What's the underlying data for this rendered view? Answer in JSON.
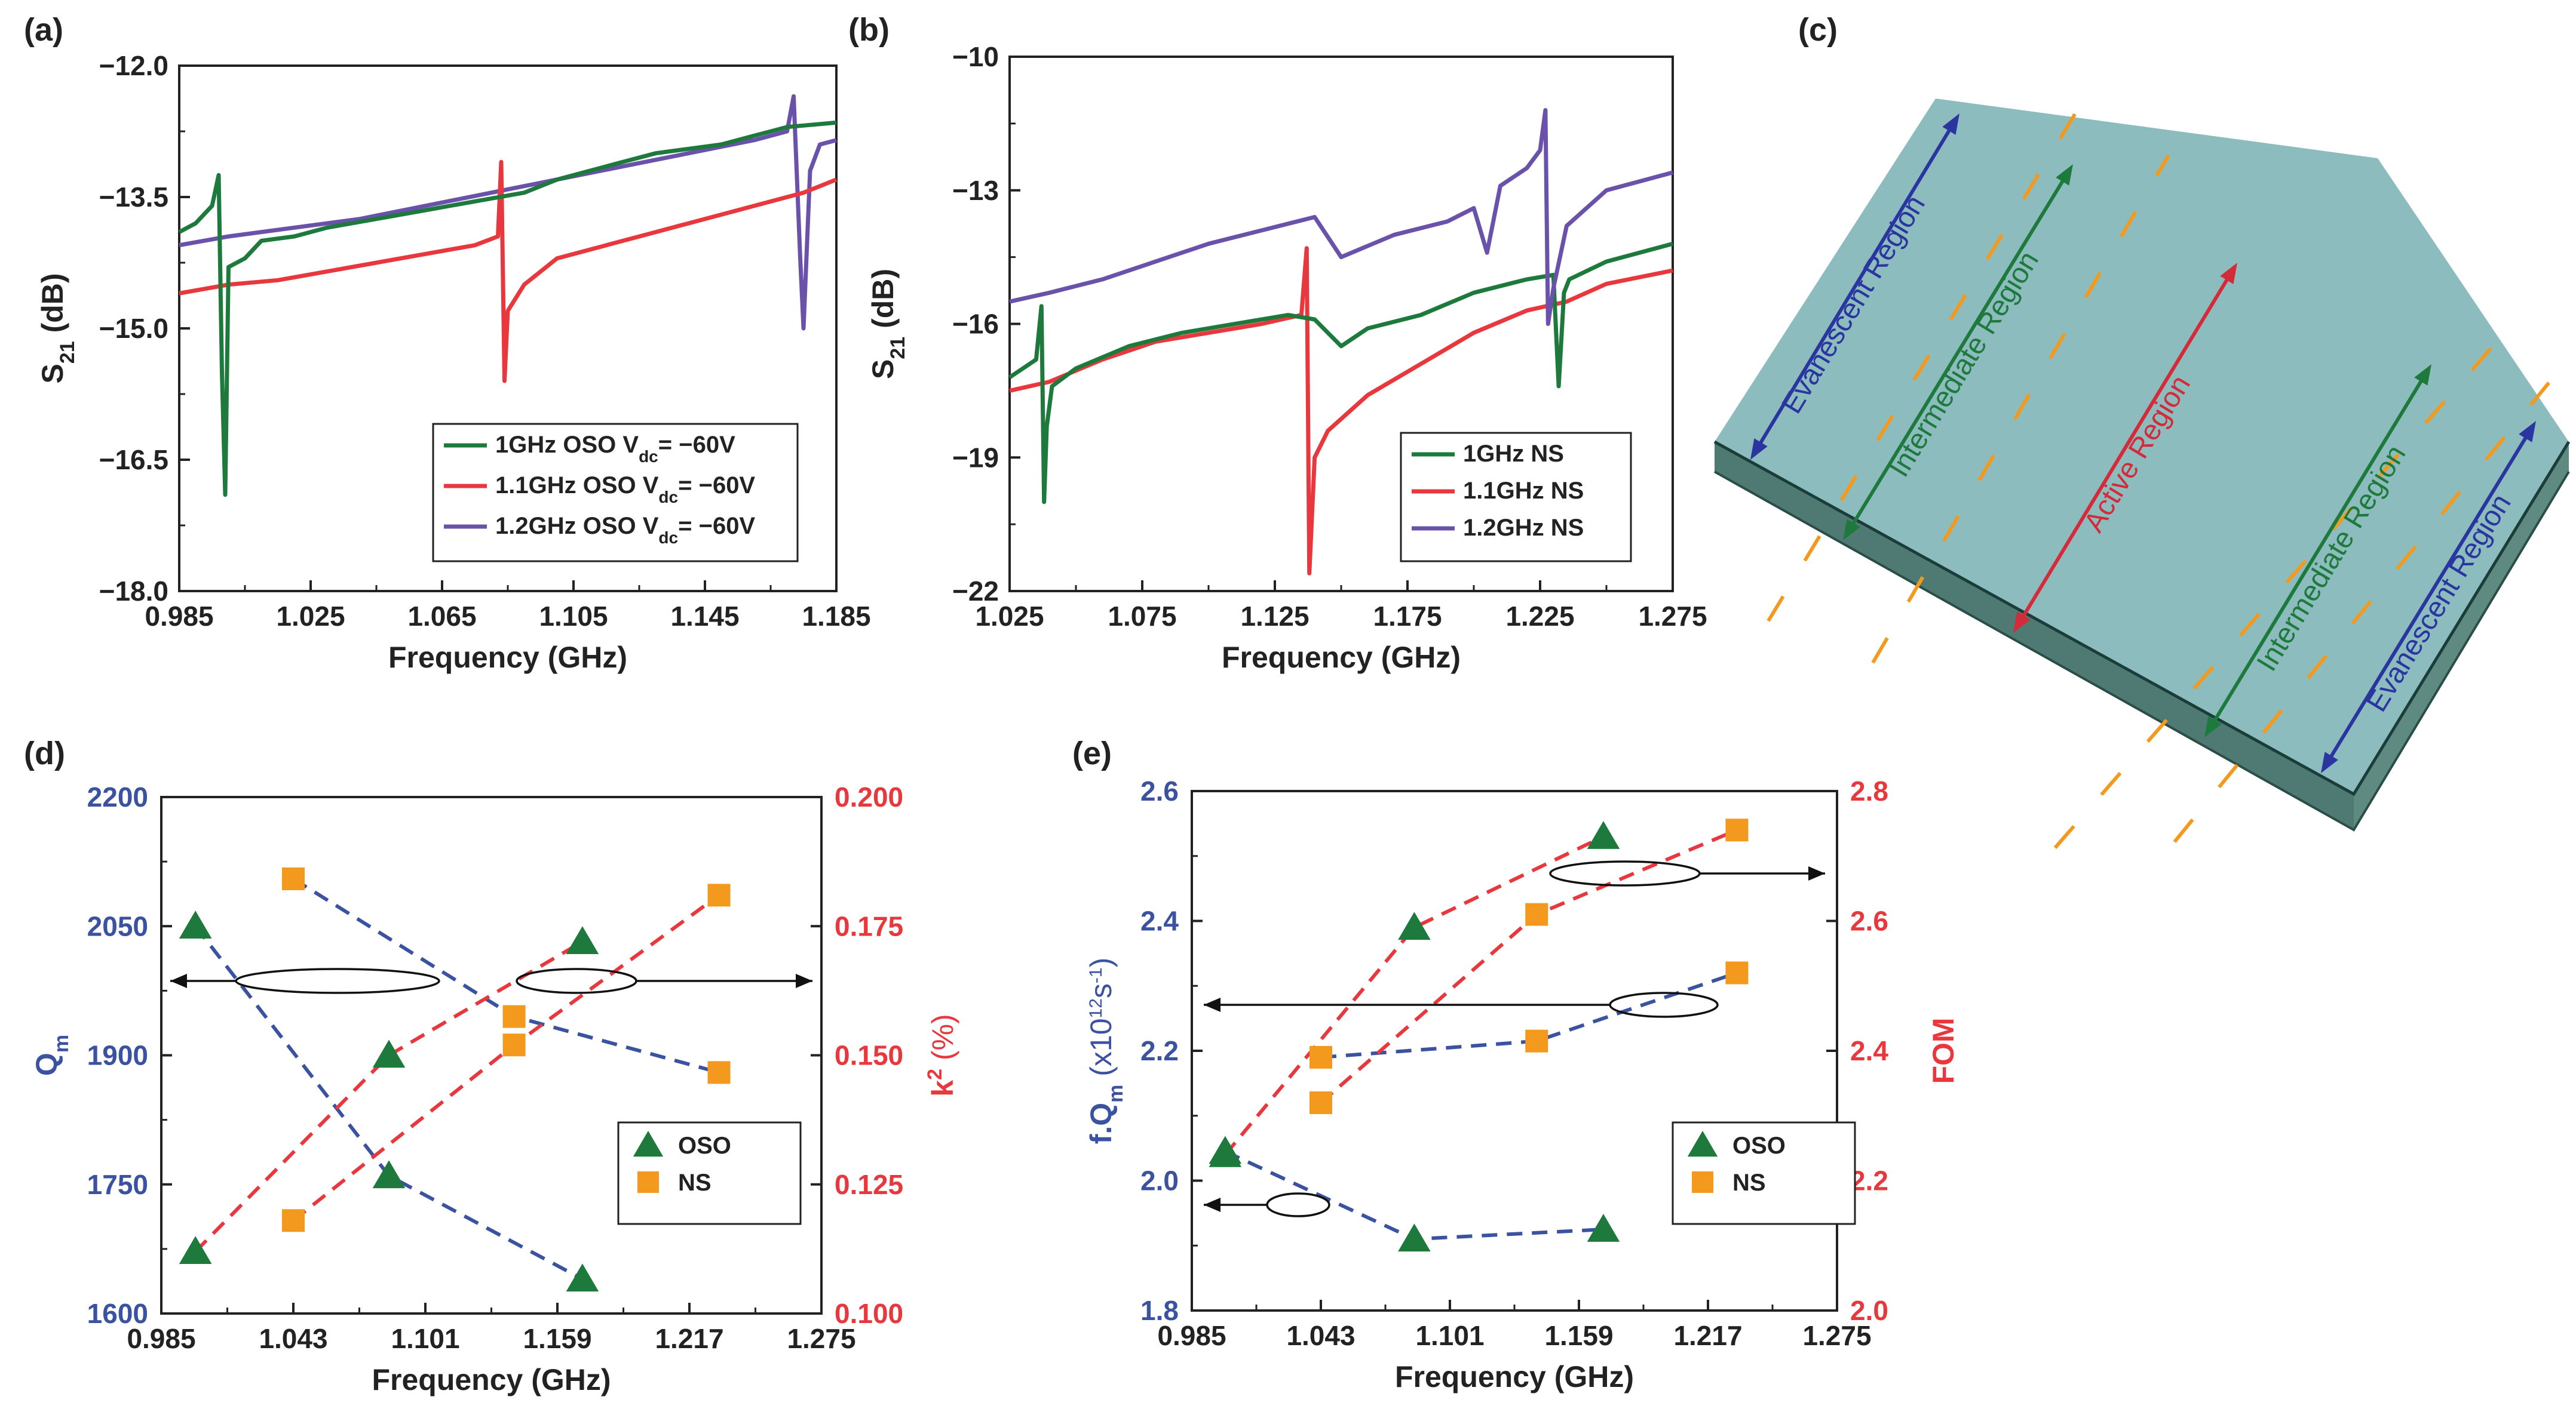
{
  "figure": {
    "panel_labels": [
      "(a)",
      "(b)",
      "(c)",
      "(d)",
      "(e)"
    ],
    "colors": {
      "green": "#1e7a3c",
      "red": "#e8383d",
      "purple": "#6a52ab",
      "blue": "#3a52a0",
      "orange": "#f39a1e",
      "slab_top": "#8cbcbe",
      "slab_side": "#4f7a74"
    }
  },
  "diagram": {
    "regions": [
      {
        "label": "Evanescent Region",
        "color": "#2a35a0"
      },
      {
        "label": "Intermediate Region",
        "color": "#1e7a3c"
      },
      {
        "label": "Active Region",
        "color": "#d42a3a"
      },
      {
        "label": "Intermediate Region",
        "color": "#1e7a3c"
      },
      {
        "label": "Evanescent Region",
        "color": "#2a35a0"
      }
    ]
  },
  "chart_data": [
    {
      "id": "a",
      "type": "line",
      "xlabel": "Frequency (GHz)",
      "ylabel": "S21 (dB)",
      "xlim": [
        0.985,
        1.185
      ],
      "ylim": [
        -18.0,
        -12.0
      ],
      "xticks": [
        "0.985",
        "1.025",
        "1.065",
        "1.105",
        "1.145",
        "1.185"
      ],
      "yticks": [
        "-12.0",
        "-13.5",
        "-15.0",
        "-16.5",
        "-18.0"
      ],
      "legend_position": "bottom-right",
      "series": [
        {
          "name": "1GHz OSO Vdc= −60V",
          "label_main": "1GHz OSO V",
          "label_sub": "dc",
          "label_tail": "= −60V",
          "color": "#1e7a3c",
          "x": [
            0.985,
            0.99,
            0.995,
            0.997,
            0.998,
            0.999,
            1.0,
            1.005,
            1.01,
            1.02,
            1.03,
            1.045,
            1.06,
            1.075,
            1.09,
            1.1,
            1.11,
            1.12,
            1.13,
            1.14,
            1.15,
            1.16,
            1.17,
            1.185
          ],
          "y": [
            -13.9,
            -13.8,
            -13.6,
            -13.25,
            -15.5,
            -16.9,
            -14.3,
            -14.2,
            -14.0,
            -13.95,
            -13.85,
            -13.75,
            -13.65,
            -13.55,
            -13.45,
            -13.3,
            -13.2,
            -13.1,
            -13.0,
            -12.95,
            -12.9,
            -12.8,
            -12.7,
            -12.65
          ]
        },
        {
          "name": "1.1GHz OSO Vdc= −60V",
          "label_main": "1.1GHz OSO V",
          "label_sub": "dc",
          "label_tail": "= −60V",
          "color": "#e8383d",
          "x": [
            0.985,
            1.0,
            1.015,
            1.03,
            1.045,
            1.06,
            1.075,
            1.082,
            1.083,
            1.084,
            1.085,
            1.09,
            1.1,
            1.115,
            1.13,
            1.145,
            1.16,
            1.175,
            1.185
          ],
          "y": [
            -14.6,
            -14.5,
            -14.45,
            -14.35,
            -14.25,
            -14.15,
            -14.05,
            -13.95,
            -13.1,
            -15.6,
            -14.8,
            -14.5,
            -14.2,
            -14.05,
            -13.9,
            -13.75,
            -13.6,
            -13.45,
            -13.3
          ]
        },
        {
          "name": "1.2GHz OSO Vdc= −60V",
          "label_main": "1.2GHz OSO V",
          "label_sub": "dc",
          "label_tail": "= −60V",
          "color": "#6a52ab",
          "x": [
            0.985,
            1.0,
            1.02,
            1.04,
            1.06,
            1.08,
            1.1,
            1.12,
            1.14,
            1.16,
            1.17,
            1.172,
            1.174,
            1.175,
            1.177,
            1.18,
            1.185
          ],
          "y": [
            -14.05,
            -13.95,
            -13.85,
            -13.75,
            -13.6,
            -13.45,
            -13.3,
            -13.15,
            -13.0,
            -12.85,
            -12.75,
            -12.35,
            -14.2,
            -15.0,
            -13.2,
            -12.9,
            -12.85
          ]
        }
      ]
    },
    {
      "id": "b",
      "type": "line",
      "xlabel": "Frequency (GHz)",
      "ylabel": "S21 (dB)",
      "xlim": [
        1.025,
        1.275
      ],
      "ylim": [
        -22,
        -10
      ],
      "xticks": [
        "1.025",
        "1.075",
        "1.125",
        "1.175",
        "1.225",
        "1.275"
      ],
      "yticks": [
        "-10",
        "-13",
        "-16",
        "-19",
        "-22"
      ],
      "legend_position": "bottom-right",
      "series": [
        {
          "name": "1GHz NS",
          "color": "#1e7a3c",
          "x": [
            1.025,
            1.03,
            1.035,
            1.037,
            1.038,
            1.039,
            1.041,
            1.05,
            1.07,
            1.09,
            1.11,
            1.13,
            1.14,
            1.15,
            1.16,
            1.18,
            1.2,
            1.22,
            1.23,
            1.232,
            1.234,
            1.236,
            1.25,
            1.275
          ],
          "y": [
            -17.2,
            -17.0,
            -16.8,
            -15.6,
            -20.0,
            -18.3,
            -17.4,
            -17.0,
            -16.5,
            -16.2,
            -16.0,
            -15.8,
            -15.9,
            -16.5,
            -16.1,
            -15.8,
            -15.3,
            -15.0,
            -14.9,
            -17.4,
            -15.3,
            -15.0,
            -14.6,
            -14.2
          ]
        },
        {
          "name": "1.1GHz NS",
          "color": "#e8383d",
          "x": [
            1.025,
            1.04,
            1.06,
            1.08,
            1.1,
            1.12,
            1.135,
            1.137,
            1.138,
            1.14,
            1.145,
            1.16,
            1.18,
            1.2,
            1.22,
            1.235,
            1.25,
            1.275
          ],
          "y": [
            -17.5,
            -17.3,
            -16.8,
            -16.4,
            -16.2,
            -16.0,
            -15.8,
            -14.3,
            -21.6,
            -19.0,
            -18.4,
            -17.6,
            -16.9,
            -16.2,
            -15.7,
            -15.5,
            -15.1,
            -14.8
          ]
        },
        {
          "name": "1.2GHz NS",
          "color": "#6a52ab",
          "x": [
            1.025,
            1.04,
            1.06,
            1.08,
            1.1,
            1.12,
            1.14,
            1.15,
            1.17,
            1.19,
            1.2,
            1.205,
            1.21,
            1.22,
            1.225,
            1.227,
            1.228,
            1.23,
            1.235,
            1.25,
            1.275
          ],
          "y": [
            -15.5,
            -15.3,
            -15.0,
            -14.6,
            -14.2,
            -13.9,
            -13.6,
            -14.5,
            -14.0,
            -13.7,
            -13.4,
            -14.4,
            -12.9,
            -12.5,
            -12.1,
            -11.2,
            -16.0,
            -15.2,
            -13.8,
            -13.0,
            -12.6
          ]
        }
      ]
    },
    {
      "id": "d",
      "type": "scatter",
      "xlabel": "Frequency (GHz)",
      "ylabel_left": "Qm",
      "ylabel_right": "k2 (%)",
      "xlim": [
        0.985,
        1.275
      ],
      "ylim_left": [
        1600,
        2200
      ],
      "ylim_right": [
        0.1,
        0.2
      ],
      "xticks": [
        "0.985",
        "1.043",
        "1.101",
        "1.159",
        "1.217",
        "1.275"
      ],
      "yticks_left": [
        "1600",
        "1750",
        "1900",
        "2050",
        "2200"
      ],
      "yticks_right": [
        "0.100",
        "0.125",
        "0.150",
        "0.175",
        "0.200"
      ],
      "legend_position": "bottom-right",
      "legend": [
        {
          "label": "OSO",
          "marker": "triangle"
        },
        {
          "label": "NS",
          "marker": "square"
        }
      ],
      "series": [
        {
          "name": "OSO Qm",
          "axis": "left",
          "marker": "triangle",
          "x": [
            1.0,
            1.085,
            1.17
          ],
          "y": [
            2050,
            1760,
            1640
          ]
        },
        {
          "name": "NS Qm",
          "axis": "left",
          "marker": "square",
          "x": [
            1.043,
            1.14,
            1.23
          ],
          "y": [
            2105,
            1945,
            1880
          ]
        },
        {
          "name": "OSO k2",
          "axis": "right",
          "marker": "triangle",
          "x": [
            1.0,
            1.085,
            1.17
          ],
          "y": [
            0.112,
            0.15,
            0.172
          ]
        },
        {
          "name": "NS k2",
          "axis": "right",
          "marker": "square",
          "x": [
            1.043,
            1.14,
            1.23
          ],
          "y": [
            0.118,
            0.152,
            0.181
          ]
        }
      ]
    },
    {
      "id": "e",
      "type": "scatter",
      "xlabel": "Frequency (GHz)",
      "ylabel_left": "f.Qm (x10^12 s^-1)",
      "ylabel_right": "FOM",
      "xlim": [
        0.985,
        1.275
      ],
      "ylim_left": [
        1.8,
        2.6
      ],
      "ylim_right": [
        2.0,
        2.8
      ],
      "xticks": [
        "0.985",
        "1.043",
        "1.101",
        "1.159",
        "1.217",
        "1.275"
      ],
      "yticks_left": [
        "1.8",
        "2.0",
        "2.2",
        "2.4",
        "2.6"
      ],
      "yticks_right": [
        "2.0",
        "2.2",
        "2.4",
        "2.6",
        "2.8"
      ],
      "legend_position": "bottom-right",
      "legend": [
        {
          "label": "OSO",
          "marker": "triangle"
        },
        {
          "label": "NS",
          "marker": "square"
        }
      ],
      "series": [
        {
          "name": "OSO f.Qm",
          "axis": "left",
          "marker": "triangle",
          "x": [
            1.0,
            1.085,
            1.17
          ],
          "y": [
            2.045,
            1.91,
            1.925
          ]
        },
        {
          "name": "NS f.Qm",
          "axis": "left",
          "marker": "square",
          "x": [
            1.043,
            1.14,
            1.23
          ],
          "y": [
            2.19,
            2.215,
            2.32
          ]
        },
        {
          "name": "OSO FOM",
          "axis": "right",
          "marker": "triangle",
          "x": [
            1.0,
            1.085,
            1.17
          ],
          "y": [
            2.24,
            2.59,
            2.73
          ]
        },
        {
          "name": "NS FOM",
          "axis": "right",
          "marker": "square",
          "x": [
            1.043,
            1.14,
            1.23
          ],
          "y": [
            2.32,
            2.61,
            2.74
          ]
        }
      ]
    }
  ]
}
